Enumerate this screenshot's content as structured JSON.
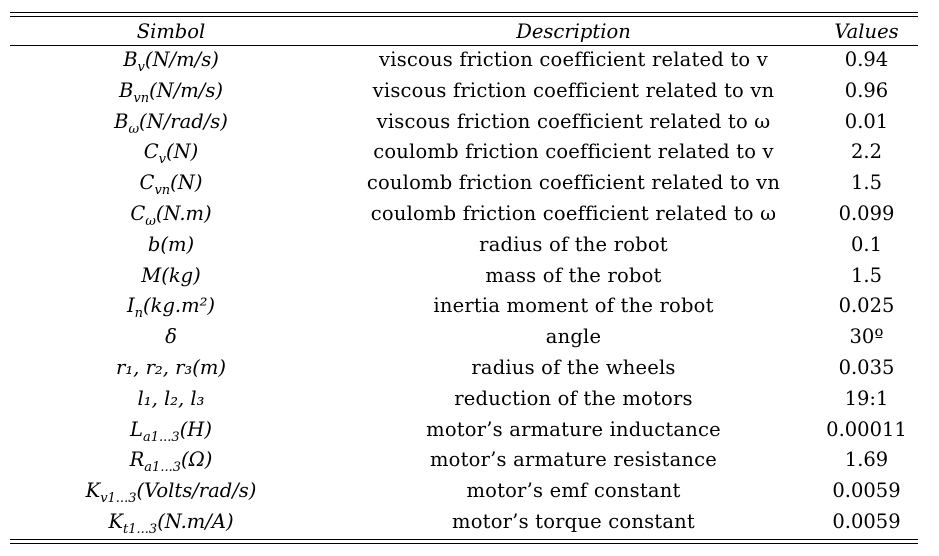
{
  "headers": {
    "symbol": "Simbol",
    "description": "Description",
    "values": "Values"
  },
  "rows": [
    {
      "symbol": "B",
      "symbol_sub": "v",
      "symbol_unit": "(N/m/s)",
      "description": "viscous friction coefficient related to v",
      "value": "0.94"
    },
    {
      "symbol": "B",
      "symbol_sub": "vn",
      "symbol_unit": "(N/m/s)",
      "description": "viscous friction coefficient related to vn",
      "value": "0.96"
    },
    {
      "symbol": "B",
      "symbol_sub": "ω",
      "symbol_unit": "(N/rad/s)",
      "description": "viscous friction coefficient related to ω",
      "value": "0.01"
    },
    {
      "symbol": "C",
      "symbol_sub": "v",
      "symbol_unit": "(N)",
      "description": "coulomb friction coefficient related to v",
      "value": "2.2"
    },
    {
      "symbol": "C",
      "symbol_sub": "vn",
      "symbol_unit": "(N)",
      "description": "coulomb friction coefficient related to vn",
      "value": "1.5"
    },
    {
      "symbol": "C",
      "symbol_sub": "ω",
      "symbol_unit": "(N.m)",
      "description": "coulomb friction coefficient related to ω",
      "value": "0.099"
    },
    {
      "symbol": "b(m)",
      "symbol_sub": "",
      "symbol_unit": "",
      "description": "radius of the robot",
      "value": "0.1"
    },
    {
      "symbol": "M(kg)",
      "symbol_sub": "",
      "symbol_unit": "",
      "description": "mass of the robot",
      "value": "1.5"
    },
    {
      "symbol": "I",
      "symbol_sub": "n",
      "symbol_unit": "(kg.m²)",
      "description": "inertia moment of the robot",
      "value": "0.025"
    },
    {
      "symbol": "δ",
      "symbol_sub": "",
      "symbol_unit": "",
      "description": "angle",
      "value": "30º"
    },
    {
      "symbol": "r₁, r₂, r₃(m)",
      "symbol_sub": "",
      "symbol_unit": "",
      "description": "radius of the wheels",
      "value": "0.035"
    },
    {
      "symbol": "l₁, l₂, l₃",
      "symbol_sub": "",
      "symbol_unit": "",
      "description": "reduction of the motors",
      "value": "19:1"
    },
    {
      "symbol": "L",
      "symbol_sub": "a1...3",
      "symbol_unit": "(H)",
      "description": "motor’s armature inductance",
      "value": "0.00011"
    },
    {
      "symbol": "R",
      "symbol_sub": "a1...3",
      "symbol_unit": "(Ω)",
      "description": "motor’s armature resistance",
      "value": "1.69"
    },
    {
      "symbol": "K",
      "symbol_sub": "v1...3",
      "symbol_unit": "(Volts/rad/s)",
      "description": "motor’s emf constant",
      "value": "0.0059"
    },
    {
      "symbol": "K",
      "symbol_sub": "t1...3",
      "symbol_unit": "(N.m/A)",
      "description": "motor’s torque constant",
      "value": "0.0059"
    }
  ]
}
